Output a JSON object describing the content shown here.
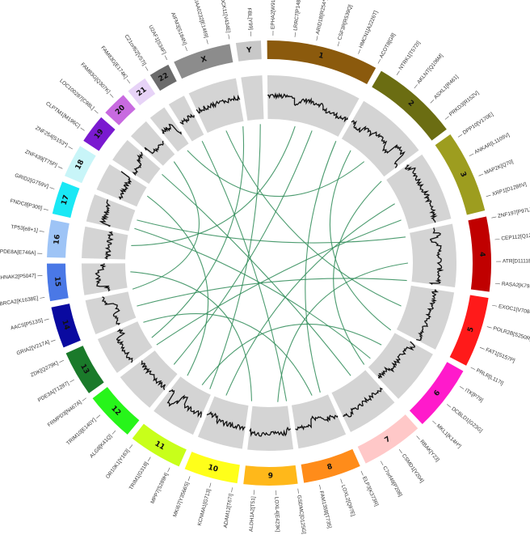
{
  "figure": {
    "link_color": "#2e8b57",
    "track_color": "#d4d4d4",
    "trace_color": "#111111"
  },
  "chromosomes": [
    {
      "name": "1",
      "color": "#8b5a0d",
      "label_color": "#111"
    },
    {
      "name": "2",
      "color": "#6b6d12",
      "label_color": "#111"
    },
    {
      "name": "3",
      "color": "#9d9d1f",
      "label_color": "#111"
    },
    {
      "name": "4",
      "color": "#c00000",
      "label_color": "#111"
    },
    {
      "name": "5",
      "color": "#ff1a1a",
      "label_color": "#111"
    },
    {
      "name": "6",
      "color": "#ff1acb",
      "label_color": "#111"
    },
    {
      "name": "7",
      "color": "#ffc8c8",
      "label_color": "#111"
    },
    {
      "name": "8",
      "color": "#ff8c1a",
      "label_color": "#111"
    },
    {
      "name": "9",
      "color": "#ffb81a",
      "label_color": "#111"
    },
    {
      "name": "10",
      "color": "#ffff1a",
      "label_color": "#111"
    },
    {
      "name": "11",
      "color": "#c8ff1a",
      "label_color": "#111"
    },
    {
      "name": "12",
      "color": "#27f51a",
      "label_color": "#111"
    },
    {
      "name": "13",
      "color": "#1a7a2a",
      "label_color": "#111"
    },
    {
      "name": "14",
      "color": "#0a0aa0",
      "label_color": "#fff"
    },
    {
      "name": "15",
      "color": "#4a78e6",
      "label_color": "#111"
    },
    {
      "name": "16",
      "color": "#9ec4f6",
      "label_color": "#111"
    },
    {
      "name": "17",
      "color": "#1ae8f5",
      "label_color": "#111"
    },
    {
      "name": "18",
      "color": "#c8f5f8",
      "label_color": "#111"
    },
    {
      "name": "19",
      "color": "#7a1ad0",
      "label_color": "#fff"
    },
    {
      "name": "20",
      "color": "#c86ae0",
      "label_color": "#111"
    },
    {
      "name": "21",
      "color": "#e7d3f7",
      "label_color": "#111"
    },
    {
      "name": "22",
      "color": "#6b6b6b",
      "label_color": "#fff"
    },
    {
      "name": "X",
      "color": "#8c8c8c",
      "label_color": "#111"
    },
    {
      "name": "Y",
      "color": "#c8c8c8",
      "label_color": "#111"
    }
  ],
  "gene_labels": [
    {
      "text": "EPHA2[W912C]"
    },
    {
      "text": "LRRC7[P1484H]"
    },
    {
      "text": "ARID1B[R254*]"
    },
    {
      "text": "CSF3R[R539Q]"
    },
    {
      "text": "HMCN1[A2226T]"
    },
    {
      "text": "ACOT8[G8]"
    },
    {
      "text": "NTRK1[T572I]"
    },
    {
      "text": "AKLNT[Q106M]"
    },
    {
      "text": "ASXL1[R461]"
    },
    {
      "text": "PRKD3[R152V]"
    },
    {
      "text": "DPP10[V170E]"
    },
    {
      "text": "ANKAR[L1109V]"
    },
    {
      "text": "MAP2K[Q70]"
    },
    {
      "text": "XRP1[D1286V]"
    },
    {
      "text": "ZNF197[P97L]"
    },
    {
      "text": "CEP112[Q122H]"
    },
    {
      "text": "ATR[D1111BN]"
    },
    {
      "text": "RASA2[K793A]"
    },
    {
      "text": "EXOC1[V708G]"
    },
    {
      "text": "POLR2B[S250R]"
    },
    {
      "text": "FAT1[S157P]"
    },
    {
      "text": "PRLR[L117I]"
    },
    {
      "text": "ITK[P79]"
    },
    {
      "text": "DCBLD1[G23G]"
    },
    {
      "text": "MKL1[K14H*]"
    },
    {
      "text": "RBAK[Y23]"
    },
    {
      "text": "CSMD1[Y204]"
    },
    {
      "text": "C7orf49[P208]"
    },
    {
      "text": "ELP3[K373R]"
    },
    {
      "text": "LOXL2[Q97E]"
    },
    {
      "text": "FAM135B[T735]"
    },
    {
      "text": "GSDMC[D125G]"
    },
    {
      "text": "LOXL4[E423K]"
    },
    {
      "text": "ALDH1A2[T51]"
    },
    {
      "text": "ADAM12[T67I]"
    },
    {
      "text": "KCNMA1[G713]"
    },
    {
      "text": "MKI67[Y3566S]"
    },
    {
      "text": "MPP7[S289H]"
    },
    {
      "text": "TRIM1[G318]"
    },
    {
      "text": "OR10K1[Y163]"
    },
    {
      "text": "ALG8[K41Q]"
    },
    {
      "text": "TRIM10[E140Y]"
    },
    {
      "text": "FRMPD3[N467A]"
    },
    {
      "text": "PDE3A[T1287]"
    },
    {
      "text": "ZDK[Q279K]"
    },
    {
      "text": "GRIA2[V217A]"
    },
    {
      "text": "AACS[P513S]"
    },
    {
      "text": "BRCA2[K1638E]"
    },
    {
      "text": "AHNAK2[P5047]"
    },
    {
      "text": "PDE8A[E746A]"
    },
    {
      "text": "TP53[e8+1]"
    },
    {
      "text": "FNDC8[P300]"
    },
    {
      "text": "GRID2[G759V]"
    },
    {
      "text": "ZNF439[T75P]"
    },
    {
      "text": "ZNF254[S153*]"
    },
    {
      "text": "CLPTM1[M196C]"
    },
    {
      "text": "LOC100287[C98L]"
    },
    {
      "text": "FAM83G[Q307K]"
    },
    {
      "text": "FAM83G[E174K]"
    },
    {
      "text": "C21orf62[V57I]"
    },
    {
      "text": "U2AF1[S34F]"
    },
    {
      "text": "AIFM3[S184N]"
    },
    {
      "text": "KIAA0232[E1469]"
    },
    {
      "text": "DOCK11[V434E]"
    },
    {
      "text": "FBL[Y99]"
    }
  ]
}
